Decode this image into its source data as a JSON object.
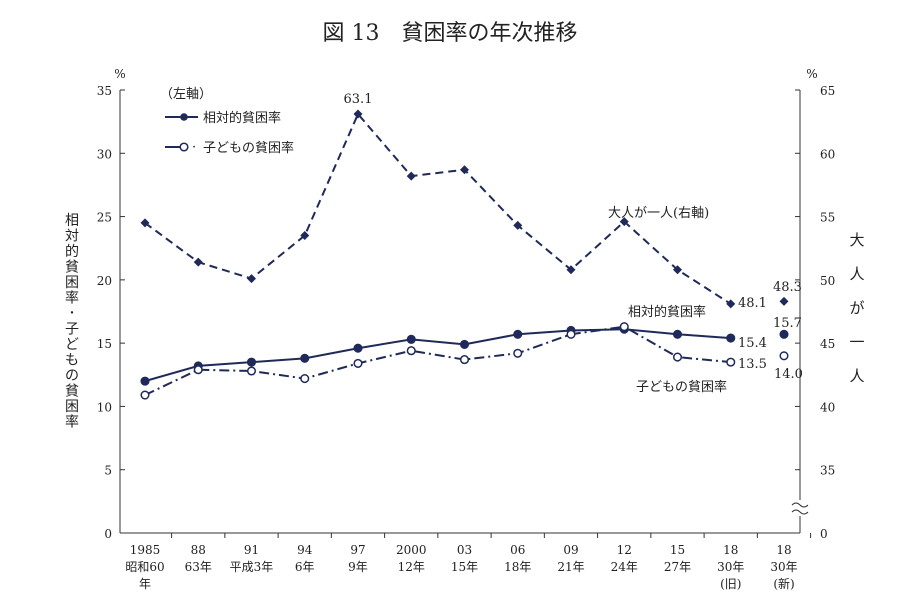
{
  "chart_data": {
    "type": "line",
    "title": "図 13　貧困率の年次推移",
    "categories": [
      [
        "1985",
        "昭和60",
        "年"
      ],
      [
        "88",
        "63年"
      ],
      [
        "91",
        "平成3年"
      ],
      [
        "94",
        "6年"
      ],
      [
        "97",
        "9年"
      ],
      [
        "2000",
        "12年"
      ],
      [
        "03",
        "15年"
      ],
      [
        "06",
        "18年"
      ],
      [
        "09",
        "21年"
      ],
      [
        "12",
        "24年"
      ],
      [
        "15",
        "27年"
      ],
      [
        "18",
        "30年",
        "(旧)"
      ],
      [
        "18",
        "30年",
        "(新)"
      ]
    ],
    "ylabel_left": "相対的貧困率・子どもの貧困率",
    "ylabel_right": "大人が一人",
    "unit_left": "%",
    "unit_right": "%",
    "ylim_left": [
      0,
      35
    ],
    "yticks_left": [
      0,
      5,
      10,
      15,
      20,
      25,
      30,
      35
    ],
    "ylim_right": [
      0,
      65
    ],
    "yticks_right": [
      0,
      35,
      40,
      45,
      50,
      55,
      60,
      65
    ],
    "right_axis_break": true,
    "legend_header": "（左軸）",
    "color": "#1f2a5a",
    "series": [
      {
        "name": "相対的貧困率",
        "axis": "left",
        "style": "solid-filled-circle",
        "values": [
          12.0,
          13.2,
          13.5,
          13.8,
          14.6,
          15.3,
          14.9,
          15.7,
          16.0,
          16.1,
          15.7,
          15.4,
          15.7
        ]
      },
      {
        "name": "子どもの貧困率",
        "axis": "left",
        "style": "dashdot-open-circle",
        "values": [
          10.9,
          12.9,
          12.8,
          12.2,
          13.4,
          14.4,
          13.7,
          14.2,
          15.7,
          16.3,
          13.9,
          13.5,
          14.0
        ]
      },
      {
        "name": "大人が一人",
        "axis": "right",
        "style": "dashed-diamond",
        "values": [
          54.5,
          51.4,
          50.1,
          53.5,
          63.1,
          58.2,
          58.7,
          54.3,
          50.8,
          54.6,
          50.8,
          48.1,
          48.3
        ]
      }
    ],
    "annotations": {
      "peak": "63.1",
      "adult_label": "大人が一人(右軸)",
      "relative_label": "相対的貧困率",
      "child_label": "子どもの貧困率",
      "adult_old": "48.1",
      "adult_new": "48.3",
      "relative_old": "15.4",
      "relative_new": "15.7",
      "child_old": "13.5",
      "child_new": "14.0"
    }
  }
}
